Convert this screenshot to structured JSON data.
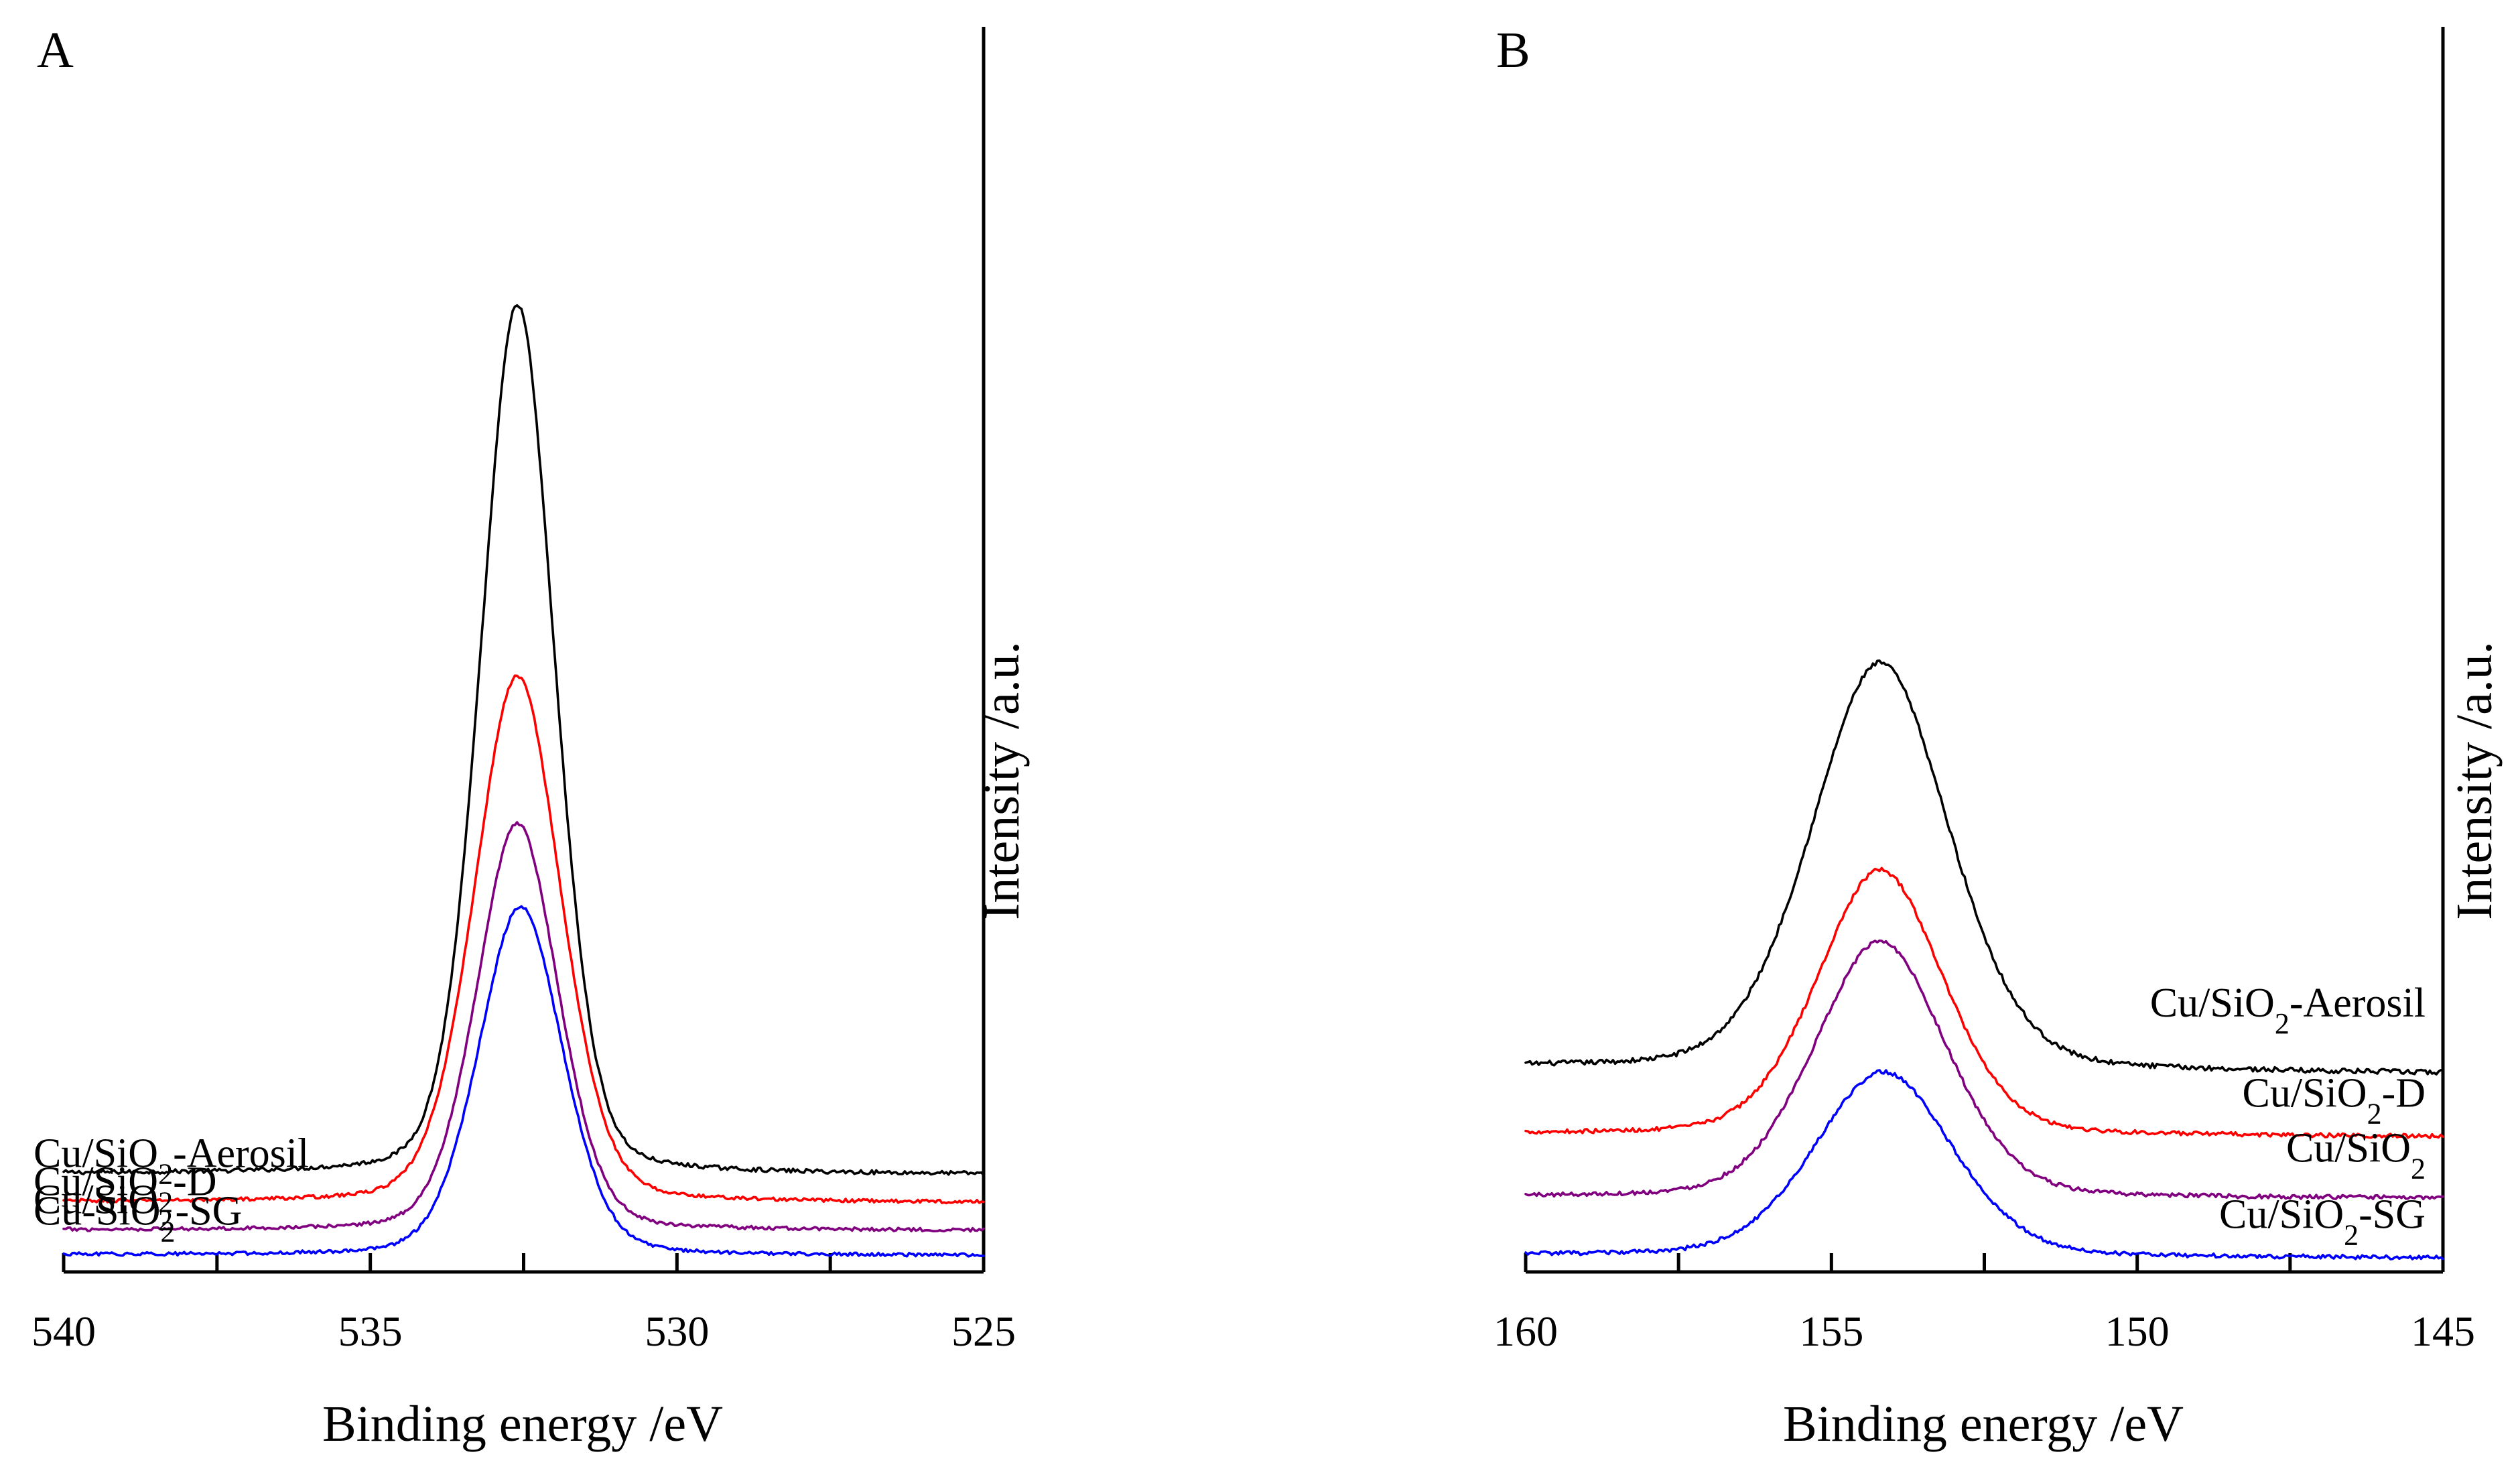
{
  "chart_data": [
    {
      "panel": "A",
      "type": "line",
      "xlabel": "Binding energy /eV",
      "ylabel": "Intensity /a.u.",
      "xlim": [
        540,
        525
      ],
      "x_ticks": [
        540,
        535,
        530,
        525
      ],
      "x_minor_ticks": [
        537.5,
        532.5,
        527.5
      ],
      "legend_placement": "left, beside each trace",
      "series": [
        {
          "name": "Cu/SiO₂-Aerosil",
          "label_main": "Cu/SiO",
          "label_sub": "2",
          "label_tail": "-Aerosil",
          "color": "#000000",
          "center": 532.6,
          "sigma": 0.62,
          "baseline_left": 0.575,
          "baseline_right": 0.57,
          "height": 5.09,
          "noise": 0.012
        },
        {
          "name": "Cu/SiO₂-D",
          "label_main": "Cu/SiO",
          "label_sub": "2",
          "label_tail": "-D",
          "color": "#ff0000",
          "center": 532.6,
          "sigma": 0.72,
          "baseline_left": 0.41,
          "baseline_right": 0.405,
          "height": 3.08,
          "noise": 0.01
        },
        {
          "name": "Cu/SiO₂",
          "label_main": "Cu/SiO",
          "label_sub": "2",
          "label_tail": "",
          "color": "#800080",
          "center": 532.6,
          "sigma": 0.68,
          "baseline_left": 0.245,
          "baseline_right": 0.242,
          "height": 2.38,
          "noise": 0.01
        },
        {
          "name": "Cu-SiO₂-SG",
          "label_main": "Cu-SiO",
          "label_sub": "2",
          "label_tail": "-SG",
          "color": "#0000ff",
          "center": 532.55,
          "sigma": 0.7,
          "baseline_left": 0.1,
          "baseline_right": 0.095,
          "height": 2.04,
          "noise": 0.01
        }
      ]
    },
    {
      "panel": "B",
      "type": "line",
      "xlabel": "Binding energy /eV",
      "ylabel": "Intensity /a.u.",
      "xlim": [
        160,
        145
      ],
      "x_ticks": [
        160,
        155,
        150,
        145
      ],
      "x_minor_ticks": [
        157.5,
        152.5,
        147.5
      ],
      "legend_placement": "right, above each trace",
      "series": [
        {
          "name": "Cu/SiO₂-Aerosil",
          "label_main": "Cu/SiO",
          "label_sub": "2",
          "label_tail": "-Aerosil",
          "color": "#000000",
          "center": 154.2,
          "sigma": 1.15,
          "baseline_left": 1.2,
          "baseline_right": 1.16,
          "height": 2.38,
          "noise": 0.014
        },
        {
          "name": "Cu/SiO₂-D",
          "label_main": "Cu/SiO",
          "label_sub": "2",
          "label_tail": "-D",
          "color": "#ff0000",
          "center": 154.2,
          "sigma": 1.05,
          "baseline_left": 0.81,
          "baseline_right": 0.79,
          "height": 1.55,
          "noise": 0.012
        },
        {
          "name": "Cu/SiO₂",
          "label_main": "Cu/SiO",
          "label_sub": "2",
          "label_tail": "",
          "color": "#800080",
          "center": 154.2,
          "sigma": 1.1,
          "baseline_left": 0.44,
          "baseline_right": 0.43,
          "height": 1.5,
          "noise": 0.012
        },
        {
          "name": "Cu/SiO₂-SG",
          "label_main": "Cu/SiO",
          "label_sub": "2",
          "label_tail": "-SG",
          "color": "#0000ff",
          "center": 154.15,
          "sigma": 1.15,
          "baseline_left": 0.1,
          "baseline_right": 0.08,
          "height": 1.08,
          "noise": 0.012
        }
      ]
    }
  ]
}
